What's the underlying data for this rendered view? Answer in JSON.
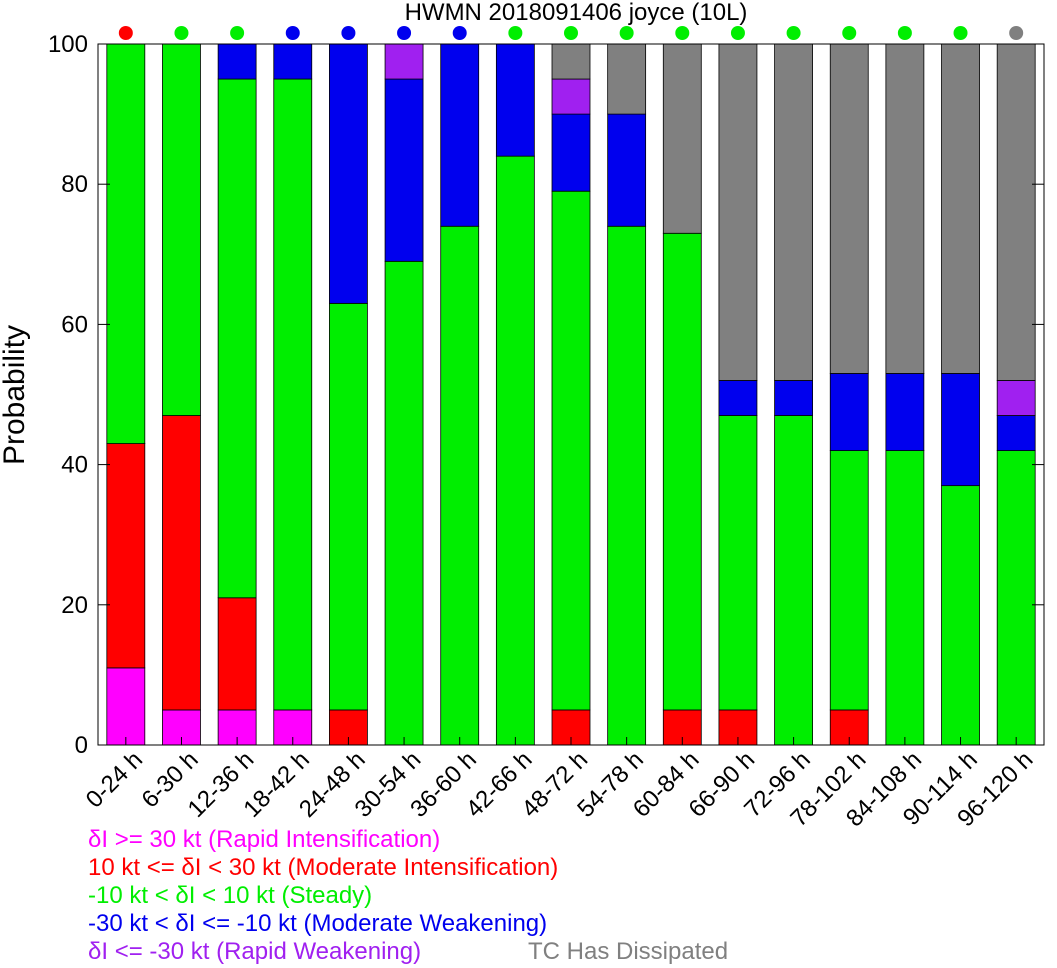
{
  "chart_data": {
    "type": "bar",
    "stacked": true,
    "title": "HWMN 2018091406 joyce (10L)",
    "xlabel": "",
    "ylabel": "Probability",
    "ylim": [
      0,
      100
    ],
    "yticks": [
      "0",
      "20",
      "40",
      "60",
      "80",
      "100"
    ],
    "categories": [
      "0-24 h",
      "6-30 h",
      "12-36 h",
      "18-42 h",
      "24-48 h",
      "30-54 h",
      "36-60 h",
      "42-66 h",
      "48-72 h",
      "54-78 h",
      "60-84 h",
      "66-90 h",
      "72-96 h",
      "78-102 h",
      "84-108 h",
      "90-114 h",
      "96-120 h"
    ],
    "series": [
      {
        "key": "ri",
        "color": "#ff00ff",
        "values": [
          11,
          5,
          5,
          5,
          0,
          0,
          0,
          0,
          0,
          0,
          0,
          0,
          0,
          0,
          0,
          0,
          0
        ]
      },
      {
        "key": "mi",
        "color": "#ff0000",
        "values": [
          32,
          42,
          16,
          0,
          5,
          0,
          0,
          0,
          5,
          0,
          5,
          5,
          0,
          5,
          0,
          0,
          0
        ]
      },
      {
        "key": "st",
        "color": "#00ee00",
        "values": [
          57,
          53,
          74,
          90,
          58,
          69,
          74,
          84,
          74,
          74,
          68,
          42,
          47,
          37,
          42,
          37,
          42
        ]
      },
      {
        "key": "mw",
        "color": "#0000ee",
        "values": [
          0,
          0,
          5,
          5,
          37,
          26,
          26,
          16,
          11,
          16,
          0,
          5,
          5,
          11,
          11,
          16,
          5
        ]
      },
      {
        "key": "rw",
        "color": "#a020f0",
        "values": [
          0,
          0,
          0,
          0,
          0,
          5,
          0,
          0,
          5,
          0,
          0,
          0,
          0,
          0,
          0,
          0,
          5
        ]
      },
      {
        "key": "dis",
        "color": "#808080",
        "values": [
          0,
          0,
          0,
          0,
          0,
          0,
          0,
          0,
          5,
          10,
          27,
          48,
          48,
          47,
          47,
          47,
          48
        ]
      }
    ],
    "top_markers": [
      "#ff0000",
      "#00ee00",
      "#00ee00",
      "#0000ee",
      "#0000ee",
      "#0000ee",
      "#0000ee",
      "#00ee00",
      "#00ee00",
      "#00ee00",
      "#00ee00",
      "#00ee00",
      "#00ee00",
      "#00ee00",
      "#00ee00",
      "#00ee00",
      "#808080"
    ],
    "grid": false,
    "legend_position": "bottom"
  },
  "legend": {
    "ri": {
      "label": "δI >= 30 kt (Rapid Intensification)",
      "color": "#ff00ff"
    },
    "mi": {
      "label": "10 kt <= δI < 30 kt (Moderate Intensification)",
      "color": "#ff0000"
    },
    "st": {
      "label": "-10 kt < δI < 10 kt (Steady)",
      "color": "#00ee00"
    },
    "mw": {
      "label": "-30 kt < δI <= -10 kt (Moderate Weakening)",
      "color": "#0000ee"
    },
    "rw": {
      "label": "δI <= -30 kt (Rapid Weakening)",
      "color": "#a020f0"
    },
    "dis": {
      "label": "TC Has Dissipated",
      "color": "#808080"
    }
  }
}
